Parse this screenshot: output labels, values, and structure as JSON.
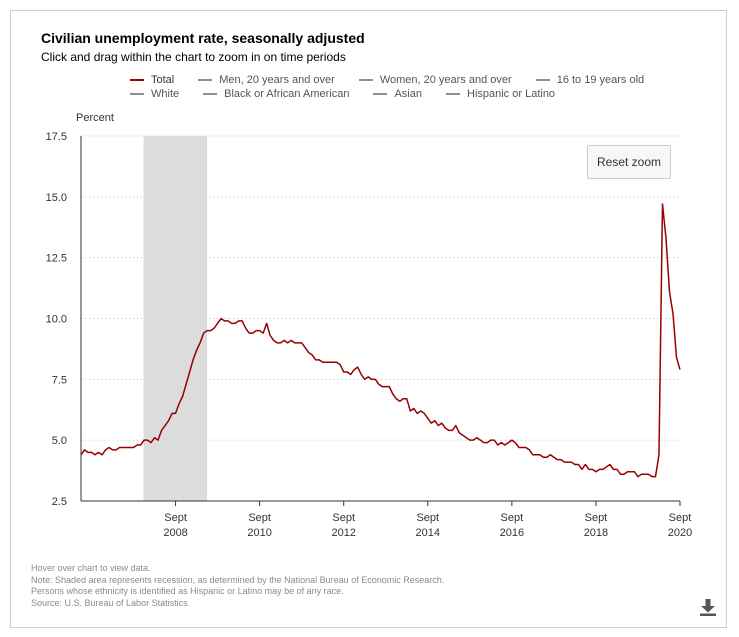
{
  "title": "Civilian unemployment rate, seasonally adjusted",
  "subtitle": "Click and drag within the chart to zoom in on time periods",
  "legend": [
    {
      "label": "Total",
      "active": true
    },
    {
      "label": "Men, 20 years and over",
      "active": false
    },
    {
      "label": "Women, 20 years and over",
      "active": false
    },
    {
      "label": "16 to 19 years old",
      "active": false
    },
    {
      "label": "White",
      "active": false
    },
    {
      "label": "Black or African American",
      "active": false
    },
    {
      "label": "Asian",
      "active": false
    },
    {
      "label": "Hispanic or Latino",
      "active": false
    }
  ],
  "reset_zoom_label": "Reset zoom",
  "notes": [
    "Hover over chart to view data.",
    "Note: Shaded area represents recession, as determined by the National Bureau of Economic Research.",
    "Persons whose ethnicity is identified as Hispanic or Latino may be of any race.",
    "Source: U.S. Bureau of Labor Statistics."
  ],
  "icons": {
    "download": "download-icon"
  },
  "colors": {
    "total_line": "#990000",
    "recession_shade": "#dcdcdc",
    "grid": "#bdbdbd",
    "inactive_legend": "#8f8f8f"
  },
  "chart_data": {
    "type": "line",
    "title": "Civilian unemployment rate, seasonally adjusted",
    "ylabel": "Percent",
    "xlabel": "",
    "ylim": [
      2.5,
      17.5
    ],
    "xlim": [
      "2006-06",
      "2020-09"
    ],
    "y_ticks": [
      "17.5",
      "15.0",
      "12.5",
      "10.0",
      "7.5",
      "5.0",
      "2.5"
    ],
    "y_tick_values": [
      17.5,
      15.0,
      12.5,
      10.0,
      7.5,
      5.0,
      2.5
    ],
    "x_ticks": [
      {
        "date": "2008-09",
        "label1": "Sept",
        "label2": "2008"
      },
      {
        "date": "2010-09",
        "label1": "Sept",
        "label2": "2010"
      },
      {
        "date": "2012-09",
        "label1": "Sept",
        "label2": "2012"
      },
      {
        "date": "2014-09",
        "label1": "Sept",
        "label2": "2014"
      },
      {
        "date": "2016-09",
        "label1": "Sept",
        "label2": "2016"
      },
      {
        "date": "2018-09",
        "label1": "Sept",
        "label2": "2018"
      },
      {
        "date": "2020-09",
        "label1": "Sept",
        "label2": "2020"
      }
    ],
    "grid": "horizontal dotted",
    "legend_position": "top",
    "recession": {
      "start": "2007-12",
      "end": "2009-06"
    },
    "series": [
      {
        "name": "Total",
        "color": "#990000",
        "points": [
          [
            "2006-06",
            4.4
          ],
          [
            "2006-07",
            4.6
          ],
          [
            "2006-08",
            4.5
          ],
          [
            "2006-09",
            4.5
          ],
          [
            "2006-10",
            4.4
          ],
          [
            "2006-11",
            4.5
          ],
          [
            "2006-12",
            4.4
          ],
          [
            "2007-01",
            4.6
          ],
          [
            "2007-02",
            4.7
          ],
          [
            "2007-03",
            4.6
          ],
          [
            "2007-04",
            4.6
          ],
          [
            "2007-05",
            4.7
          ],
          [
            "2007-06",
            4.7
          ],
          [
            "2007-07",
            4.7
          ],
          [
            "2007-08",
            4.7
          ],
          [
            "2007-09",
            4.7
          ],
          [
            "2007-10",
            4.8
          ],
          [
            "2007-11",
            4.8
          ],
          [
            "2007-12",
            5.0
          ],
          [
            "2008-01",
            5.0
          ],
          [
            "2008-02",
            4.9
          ],
          [
            "2008-03",
            5.1
          ],
          [
            "2008-04",
            5.0
          ],
          [
            "2008-05",
            5.4
          ],
          [
            "2008-06",
            5.6
          ],
          [
            "2008-07",
            5.8
          ],
          [
            "2008-08",
            6.1
          ],
          [
            "2008-09",
            6.1
          ],
          [
            "2008-10",
            6.5
          ],
          [
            "2008-11",
            6.8
          ],
          [
            "2008-12",
            7.3
          ],
          [
            "2009-01",
            7.8
          ],
          [
            "2009-02",
            8.3
          ],
          [
            "2009-03",
            8.7
          ],
          [
            "2009-04",
            9.0
          ],
          [
            "2009-05",
            9.4
          ],
          [
            "2009-06",
            9.5
          ],
          [
            "2009-07",
            9.5
          ],
          [
            "2009-08",
            9.6
          ],
          [
            "2009-09",
            9.8
          ],
          [
            "2009-10",
            10.0
          ],
          [
            "2009-11",
            9.9
          ],
          [
            "2009-12",
            9.9
          ],
          [
            "2010-01",
            9.8
          ],
          [
            "2010-02",
            9.8
          ],
          [
            "2010-03",
            9.9
          ],
          [
            "2010-04",
            9.9
          ],
          [
            "2010-05",
            9.6
          ],
          [
            "2010-06",
            9.4
          ],
          [
            "2010-07",
            9.4
          ],
          [
            "2010-08",
            9.5
          ],
          [
            "2010-09",
            9.5
          ],
          [
            "2010-10",
            9.4
          ],
          [
            "2010-11",
            9.8
          ],
          [
            "2010-12",
            9.3
          ],
          [
            "2011-01",
            9.1
          ],
          [
            "2011-02",
            9.0
          ],
          [
            "2011-03",
            9.0
          ],
          [
            "2011-04",
            9.1
          ],
          [
            "2011-05",
            9.0
          ],
          [
            "2011-06",
            9.1
          ],
          [
            "2011-07",
            9.0
          ],
          [
            "2011-08",
            9.0
          ],
          [
            "2011-09",
            9.0
          ],
          [
            "2011-10",
            8.8
          ],
          [
            "2011-11",
            8.6
          ],
          [
            "2011-12",
            8.5
          ],
          [
            "2012-01",
            8.3
          ],
          [
            "2012-02",
            8.3
          ],
          [
            "2012-03",
            8.2
          ],
          [
            "2012-04",
            8.2
          ],
          [
            "2012-05",
            8.2
          ],
          [
            "2012-06",
            8.2
          ],
          [
            "2012-07",
            8.2
          ],
          [
            "2012-08",
            8.1
          ],
          [
            "2012-09",
            7.8
          ],
          [
            "2012-10",
            7.8
          ],
          [
            "2012-11",
            7.7
          ],
          [
            "2012-12",
            7.9
          ],
          [
            "2013-01",
            8.0
          ],
          [
            "2013-02",
            7.7
          ],
          [
            "2013-03",
            7.5
          ],
          [
            "2013-04",
            7.6
          ],
          [
            "2013-05",
            7.5
          ],
          [
            "2013-06",
            7.5
          ],
          [
            "2013-07",
            7.3
          ],
          [
            "2013-08",
            7.2
          ],
          [
            "2013-09",
            7.2
          ],
          [
            "2013-10",
            7.2
          ],
          [
            "2013-11",
            6.9
          ],
          [
            "2013-12",
            6.7
          ],
          [
            "2014-01",
            6.6
          ],
          [
            "2014-02",
            6.7
          ],
          [
            "2014-03",
            6.7
          ],
          [
            "2014-04",
            6.2
          ],
          [
            "2014-05",
            6.3
          ],
          [
            "2014-06",
            6.1
          ],
          [
            "2014-07",
            6.2
          ],
          [
            "2014-08",
            6.1
          ],
          [
            "2014-09",
            5.9
          ],
          [
            "2014-10",
            5.7
          ],
          [
            "2014-11",
            5.8
          ],
          [
            "2014-12",
            5.6
          ],
          [
            "2015-01",
            5.7
          ],
          [
            "2015-02",
            5.5
          ],
          [
            "2015-03",
            5.4
          ],
          [
            "2015-04",
            5.4
          ],
          [
            "2015-05",
            5.6
          ],
          [
            "2015-06",
            5.3
          ],
          [
            "2015-07",
            5.2
          ],
          [
            "2015-08",
            5.1
          ],
          [
            "2015-09",
            5.0
          ],
          [
            "2015-10",
            5.0
          ],
          [
            "2015-11",
            5.1
          ],
          [
            "2015-12",
            5.0
          ],
          [
            "2016-01",
            4.9
          ],
          [
            "2016-02",
            4.9
          ],
          [
            "2016-03",
            5.0
          ],
          [
            "2016-04",
            5.0
          ],
          [
            "2016-05",
            4.8
          ],
          [
            "2016-06",
            4.9
          ],
          [
            "2016-07",
            4.8
          ],
          [
            "2016-08",
            4.9
          ],
          [
            "2016-09",
            5.0
          ],
          [
            "2016-10",
            4.9
          ],
          [
            "2016-11",
            4.7
          ],
          [
            "2016-12",
            4.7
          ],
          [
            "2017-01",
            4.7
          ],
          [
            "2017-02",
            4.6
          ],
          [
            "2017-03",
            4.4
          ],
          [
            "2017-04",
            4.4
          ],
          [
            "2017-05",
            4.4
          ],
          [
            "2017-06",
            4.3
          ],
          [
            "2017-07",
            4.3
          ],
          [
            "2017-08",
            4.4
          ],
          [
            "2017-09",
            4.3
          ],
          [
            "2017-10",
            4.2
          ],
          [
            "2017-11",
            4.2
          ],
          [
            "2017-12",
            4.1
          ],
          [
            "2018-01",
            4.1
          ],
          [
            "2018-02",
            4.1
          ],
          [
            "2018-03",
            4.0
          ],
          [
            "2018-04",
            4.0
          ],
          [
            "2018-05",
            3.8
          ],
          [
            "2018-06",
            4.0
          ],
          [
            "2018-07",
            3.8
          ],
          [
            "2018-08",
            3.8
          ],
          [
            "2018-09",
            3.7
          ],
          [
            "2018-10",
            3.8
          ],
          [
            "2018-11",
            3.8
          ],
          [
            "2018-12",
            3.9
          ],
          [
            "2019-01",
            4.0
          ],
          [
            "2019-02",
            3.8
          ],
          [
            "2019-03",
            3.8
          ],
          [
            "2019-04",
            3.6
          ],
          [
            "2019-05",
            3.6
          ],
          [
            "2019-06",
            3.7
          ],
          [
            "2019-07",
            3.7
          ],
          [
            "2019-08",
            3.7
          ],
          [
            "2019-09",
            3.5
          ],
          [
            "2019-10",
            3.6
          ],
          [
            "2019-11",
            3.6
          ],
          [
            "2019-12",
            3.6
          ],
          [
            "2020-01",
            3.5
          ],
          [
            "2020-02",
            3.5
          ],
          [
            "2020-03",
            4.4
          ],
          [
            "2020-04",
            14.7
          ],
          [
            "2020-05",
            13.3
          ],
          [
            "2020-06",
            11.1
          ],
          [
            "2020-07",
            10.2
          ],
          [
            "2020-08",
            8.4
          ],
          [
            "2020-09",
            7.9
          ]
        ]
      }
    ]
  }
}
